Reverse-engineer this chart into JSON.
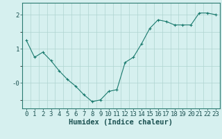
{
  "x": [
    0,
    1,
    2,
    3,
    4,
    5,
    6,
    7,
    8,
    9,
    10,
    11,
    12,
    13,
    14,
    15,
    16,
    17,
    18,
    19,
    20,
    21,
    22,
    23
  ],
  "y": [
    1.25,
    0.75,
    0.9,
    0.65,
    0.35,
    0.1,
    -0.1,
    -0.35,
    -0.55,
    -0.5,
    -0.25,
    -0.2,
    0.6,
    0.75,
    1.15,
    1.6,
    1.85,
    1.8,
    1.7,
    1.7,
    1.7,
    2.05,
    2.05,
    2.0
  ],
  "line_color": "#1a7a6e",
  "marker": "+",
  "marker_size": 3,
  "bg_color": "#d6f0ef",
  "grid_color": "#afd4d0",
  "grid_major_color": "#c0dbd8",
  "xlabel": "Humidex (Indice chaleur)",
  "xlabel_fontsize": 7.5,
  "tick_fontsize": 6.5,
  "ylim": [
    -0.75,
    2.35
  ],
  "xlim": [
    -0.5,
    23.5
  ]
}
